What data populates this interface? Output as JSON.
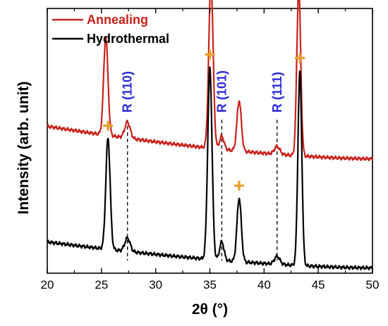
{
  "chart_data": {
    "type": "line",
    "xlabel": "2θ (°)",
    "ylabel": "Intensity (arb. unit)",
    "xlim": [
      20,
      50
    ],
    "x_ticks": [
      20,
      25,
      30,
      35,
      40,
      45,
      50
    ],
    "x_tick_labels": [
      "20",
      "25",
      "30",
      "35",
      "40",
      "45",
      "50"
    ],
    "y_ticks_shown": false,
    "legend": {
      "placement": "top-left",
      "entries": [
        "Annealing",
        "Hydrothermal"
      ]
    },
    "colors": {
      "Annealing": "#c8221b",
      "Hydrothermal": "#000000",
      "rutile_label": "#2b2bd6",
      "marker": "#e8a02a"
    },
    "series": [
      {
        "name": "Annealing",
        "baseline_start": 0.555,
        "baseline_end": 0.432,
        "peaks": [
          {
            "center": 25.4,
            "height": 0.37,
            "width": 0.2
          },
          {
            "center": 27.4,
            "height": 0.06,
            "width": 0.25
          },
          {
            "center": 35.1,
            "height": 0.63,
            "width": 0.2
          },
          {
            "center": 36.1,
            "height": 0.05,
            "width": 0.2
          },
          {
            "center": 37.7,
            "height": 0.19,
            "width": 0.2
          },
          {
            "center": 41.2,
            "height": 0.03,
            "width": 0.25
          },
          {
            "center": 43.2,
            "height": 0.63,
            "width": 0.18
          }
        ]
      },
      {
        "name": "Hydrothermal",
        "baseline_start": 0.118,
        "baseline_end": 0.02,
        "peaks": [
          {
            "center": 25.6,
            "height": 0.42,
            "width": 0.2
          },
          {
            "center": 27.4,
            "height": 0.05,
            "width": 0.25
          },
          {
            "center": 35.0,
            "height": 0.72,
            "width": 0.2
          },
          {
            "center": 36.1,
            "height": 0.07,
            "width": 0.2
          },
          {
            "center": 37.7,
            "height": 0.24,
            "width": 0.2
          },
          {
            "center": 41.2,
            "height": 0.03,
            "width": 0.25
          },
          {
            "center": 43.3,
            "height": 0.73,
            "width": 0.18
          }
        ]
      }
    ],
    "reference_lines": [
      {
        "x": 27.4,
        "label": "R (110)"
      },
      {
        "x": 36.1,
        "label": "R (101)"
      },
      {
        "x": 41.2,
        "label": "R (111)"
      }
    ],
    "markers": [
      {
        "symbol": "+",
        "x": 25.6
      },
      {
        "symbol": "+",
        "x": 35.0
      },
      {
        "symbol": "+",
        "x": 37.7
      },
      {
        "symbol": "+",
        "x": 43.3
      }
    ]
  }
}
